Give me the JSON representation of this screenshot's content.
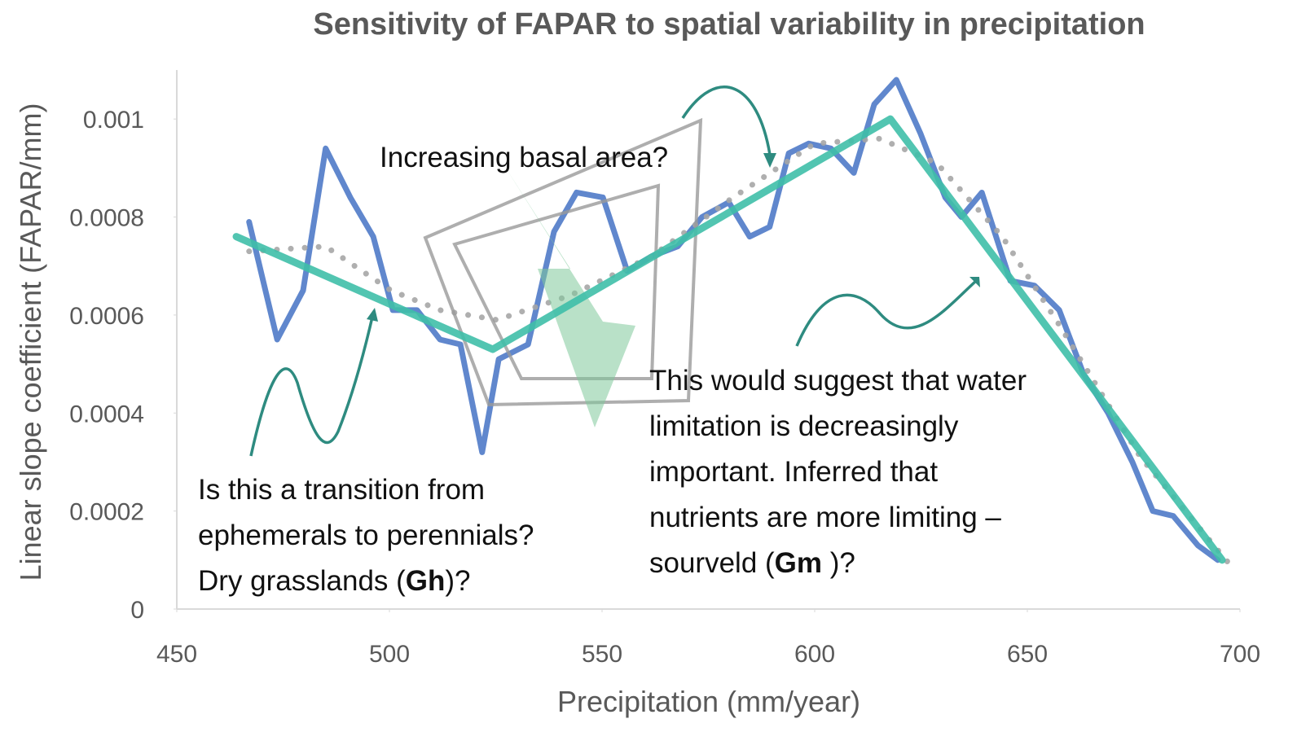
{
  "chart_data": {
    "type": "line",
    "title": "Sensitivity of FAPAR to spatial variability in precipitation",
    "x_label": "Precipitation (mm/year)",
    "y_label": "Linear slope coefficient (FAPAR/mm)",
    "xlim": [
      450,
      700
    ],
    "xticks": [
      450,
      500,
      550,
      600,
      650,
      700
    ],
    "ylim": [
      0,
      0.0011
    ],
    "yticks": [
      0,
      0.0002,
      0.0004,
      0.0006,
      0.0008,
      0.001
    ],
    "grid": false,
    "series": [
      {
        "color": "#4472c4",
        "style": "solid",
        "x": [
          467,
          473.6,
          479.7,
          485,
          490.8,
          496.2,
          500.8,
          506.5,
          511.9,
          516.7,
          521.8,
          525.7,
          532.6,
          538.7,
          544,
          550.2,
          555.9,
          561.7,
          567.8,
          573.5,
          579.8,
          584.7,
          589.4,
          593.9,
          598.6,
          603.8,
          609.2,
          614,
          619.2,
          624.9,
          630.7,
          634.5,
          639.3,
          646,
          651.7,
          657.5,
          663.2,
          669,
          674.7,
          679.5,
          684.3,
          690.1,
          694.8
        ],
        "values": [
          0.00079,
          0.00055,
          0.00065,
          0.00094,
          0.00084,
          0.00076,
          0.00061,
          0.00061,
          0.00055,
          0.00054,
          0.00032,
          0.00051,
          0.00054,
          0.00077,
          0.00085,
          0.00084,
          0.00069,
          0.00072,
          0.00074,
          0.0008,
          0.00083,
          0.00076,
          0.00078,
          0.00093,
          0.00095,
          0.00094,
          0.00089,
          0.00103,
          0.00108,
          0.00097,
          0.00084,
          0.0008,
          0.00085,
          0.00067,
          0.00066,
          0.00061,
          0.00048,
          0.0004,
          0.0003,
          0.0002,
          0.00019,
          0.00013,
          0.0001
        ]
      },
      {
        "color": "#a6a6a6",
        "style": "dotted",
        "x": [
          467,
          485,
          500.4,
          511.9,
          525.3,
          542.5,
          561.7,
          580.8,
          600,
          615.3,
          628.7,
          644.1,
          657.5,
          676.6,
          697.7
        ],
        "values": [
          0.00073,
          0.00074,
          0.00065,
          0.00061,
          0.00059,
          0.00064,
          0.00072,
          0.00084,
          0.00095,
          0.00096,
          0.00091,
          0.00076,
          0.00058,
          0.00031,
          9e-05
        ]
      },
      {
        "color": "#3fbfa8",
        "style": "thick",
        "x": [
          464,
          524.3,
          617.8,
          695.8
        ],
        "values": [
          0.00076,
          0.00053,
          0.001,
          0.0001
        ]
      }
    ],
    "annotations": [
      {
        "lines": [
          [
            {
              "text": "Increasing basal area?"
            }
          ]
        ]
      },
      {
        "lines": [
          [
            {
              "text": "Is this a transition from"
            }
          ],
          [
            {
              "text": "ephemerals to perennials?"
            }
          ],
          [
            {
              "text": "Dry grasslands ("
            },
            {
              "text": "Gh",
              "bold": true
            },
            {
              "text": ")?"
            }
          ]
        ]
      },
      {
        "lines": [
          [
            {
              "text": "This would suggest that water"
            }
          ],
          [
            {
              "text": "limitation is decreasingly"
            }
          ],
          [
            {
              "text": "important. Inferred that"
            }
          ],
          [
            {
              "text": "nutrients are more limiting –"
            }
          ],
          [
            {
              "text": "sourveld ("
            },
            {
              "text": "Gm",
              "bold": true
            },
            {
              "text": " )?"
            }
          ]
        ]
      }
    ]
  }
}
